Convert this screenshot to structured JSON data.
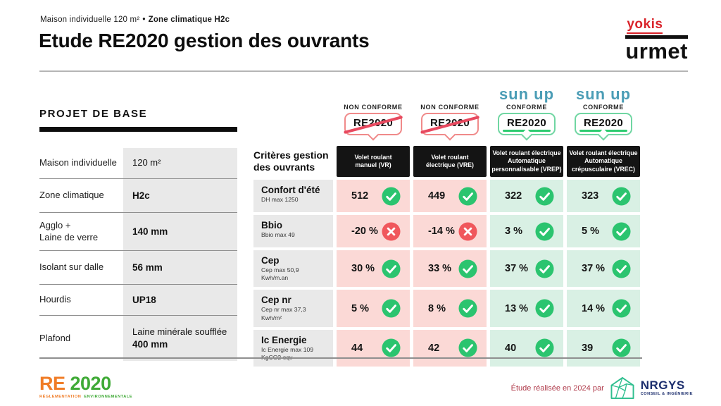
{
  "slide": {
    "kicker": {
      "left": "Maison individuelle 120 m²",
      "separator": "•",
      "right": "Zone climatique H2c"
    },
    "title": "Etude RE2020 gestion des ouvrants"
  },
  "brand": {
    "yokis": "yokis",
    "urmet": "urmet"
  },
  "project_panel": {
    "title": "PROJET DE BASE",
    "rows": [
      {
        "label": "Maison individuelle",
        "value_regular": "120 m²",
        "value_bold": ""
      },
      {
        "label": "Zone climatique",
        "value_regular": "",
        "value_bold": "H2c"
      },
      {
        "label": "Agglo +\nLaine de verre",
        "value_regular": "",
        "value_bold": "140 mm"
      },
      {
        "label": "Isolant sur dalle",
        "value_regular": "",
        "value_bold": "56 mm"
      },
      {
        "label": "Hourdis",
        "value_regular": "",
        "value_bold": "UP18"
      },
      {
        "label": "Plafond",
        "value_regular": "Laine minérale soufflée",
        "value_bold": "400 mm"
      }
    ]
  },
  "matrix": {
    "criteria_header": "Critères gestion des ouvrants",
    "columns": [
      {
        "brand": "",
        "status": "NON CONFORME",
        "badge": "RE2020",
        "conforme": false,
        "name": "Volet roulant\nmanuel (VR)"
      },
      {
        "brand": "",
        "status": "NON CONFORME",
        "badge": "RE2020",
        "conforme": false,
        "name": "Volet roulant\nélectrique (VRE)"
      },
      {
        "brand": "sun up",
        "status": "CONFORME",
        "badge": "RE2020",
        "conforme": true,
        "name": "Volet roulant électrique\nAutomatique\npersonnalisable (VREP)"
      },
      {
        "brand": "sun up",
        "status": "CONFORME",
        "badge": "RE2020",
        "conforme": true,
        "name": "Volet roulant électrique\nAutomatique\ncrépusculaire (VREC)"
      }
    ],
    "rows": [
      {
        "criterion": "Confort d'été",
        "note": "DH max 1250",
        "cells": [
          {
            "value": "512",
            "pass": true
          },
          {
            "value": "449",
            "pass": true
          },
          {
            "value": "322",
            "pass": true
          },
          {
            "value": "323",
            "pass": true
          }
        ]
      },
      {
        "criterion": "Bbio",
        "note": "Bbio max 49",
        "cells": [
          {
            "value": "-20 %",
            "pass": false
          },
          {
            "value": "-14 %",
            "pass": false
          },
          {
            "value": "3 %",
            "pass": true
          },
          {
            "value": "5 %",
            "pass": true
          }
        ]
      },
      {
        "criterion": "Cep",
        "note": "Cep max 50,9 Kwh/m.an",
        "cells": [
          {
            "value": "30 %",
            "pass": true
          },
          {
            "value": "33 %",
            "pass": true
          },
          {
            "value": "37 %",
            "pass": true
          },
          {
            "value": "37 %",
            "pass": true
          }
        ]
      },
      {
        "criterion": "Cep nr",
        "note": "Cep nr max 37,3 Kwh/m²",
        "cells": [
          {
            "value": "5 %",
            "pass": true
          },
          {
            "value": "8 %",
            "pass": true
          },
          {
            "value": "13 %",
            "pass": true
          },
          {
            "value": "14 %",
            "pass": true
          }
        ]
      },
      {
        "criterion": "Ic Energie",
        "note": "Ic Energie max 109 KgCO2 eqv",
        "cells": [
          {
            "value": "44",
            "pass": true
          },
          {
            "value": "42",
            "pass": true
          },
          {
            "value": "40",
            "pass": true
          },
          {
            "value": "39",
            "pass": true
          }
        ]
      }
    ]
  },
  "footer": {
    "re2020_logo": {
      "re": "RE",
      "year": "2020",
      "subtitle_left": "RÉGLEMENTATION",
      "subtitle_right": "ENVIRONNEMENTALE"
    },
    "credit": "Étude réalisée en 2024 par",
    "nrgys": {
      "name": "NRGYS",
      "subtitle": "CONSEIL & INGÉNIERIE"
    }
  },
  "icons": {
    "pass": "check-icon",
    "fail": "cross-icon",
    "house": "nrgys-house-icon"
  },
  "colors": {
    "pink_cell": "#fbd9d6",
    "green_cell": "#d9f0e4",
    "check_green": "#2bc46f",
    "cross_red": "#f0575c",
    "badge_red": "#f08a8a",
    "strike_red": "#e8495f",
    "badge_green": "#70d6a2",
    "underline_green": "#2ecc71",
    "sunup_teal": "#4b9db6",
    "yokis_red": "#d9232a",
    "re_orange": "#f07c26",
    "re_green": "#3faa36",
    "nrgys_navy": "#1d2f6e",
    "nrgys_green": "#2fbf8f",
    "credit_red": "#b03c4c",
    "gray_cell": "#e9e9e9",
    "box_black": "#141414"
  }
}
